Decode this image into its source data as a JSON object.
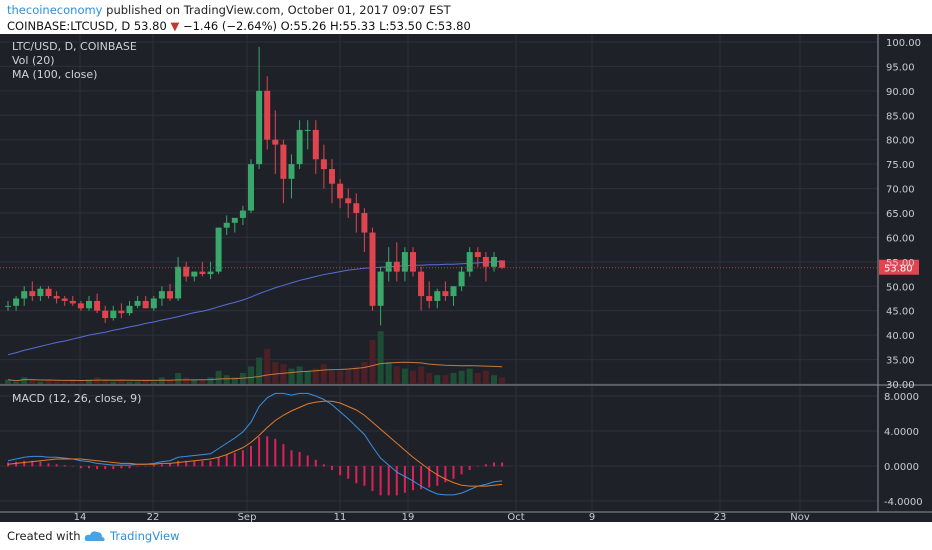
{
  "header": {
    "author": "thecoineconomy",
    "published_text": " published on TradingView.com, October 01, 2017 09:07 EST",
    "symbol_line": "COINBASE:LTCUSD, D  53.80",
    "change": "−1.46 (−2.64%)",
    "ohlc": "O:55.26 H:55.33 L:53.50 C:53.80"
  },
  "legend": {
    "symbol": "LTC/USD, D, COINBASE",
    "vol": "Vol (20)",
    "ma": "MA (100, close)",
    "macd": "MACD (12, 26, close, 9)"
  },
  "price_axis": [
    "100.00",
    "95.00",
    "90.00",
    "85.00",
    "80.00",
    "75.00",
    "70.00",
    "65.00",
    "60.00",
    "55.00",
    "50.00",
    "45.00",
    "40.00",
    "35.00",
    "30.00"
  ],
  "macd_axis": [
    "8.0000",
    "4.0000",
    "0.0000",
    "-4.0000"
  ],
  "current_price": "53.80",
  "time_axis": [
    "14",
    "22",
    "Sep",
    "11",
    "19",
    "Oct",
    "9",
    "23",
    "Nov"
  ],
  "footer": {
    "created": "Created with",
    "brand": "TradingView"
  },
  "colors": {
    "up": "#3aa86a",
    "down": "#e0454f",
    "bg": "#1e2228",
    "ma": "#5a6dd8",
    "macd": "#3b8fe0",
    "signal": "#e07a2c",
    "hist": "#e0205a"
  },
  "chart_data": [
    {
      "type": "candlestick",
      "title": "LTC/USD, D, COINBASE",
      "ylim": [
        30,
        100
      ],
      "candles_ohlc": [
        [
          46,
          47,
          45,
          46
        ],
        [
          46,
          48,
          45,
          47.5
        ],
        [
          47.5,
          50,
          46,
          49
        ],
        [
          49,
          51,
          47,
          48
        ],
        [
          48,
          50,
          47,
          49.5
        ],
        [
          49.5,
          50,
          47.5,
          48
        ],
        [
          48,
          49,
          46.5,
          47.5
        ],
        [
          47.5,
          48,
          46,
          47
        ],
        [
          47,
          48,
          46,
          46.5
        ],
        [
          46.5,
          47,
          45,
          45.5
        ],
        [
          45.5,
          48,
          45,
          47
        ],
        [
          47,
          48.5,
          44.5,
          45
        ],
        [
          45,
          46,
          42.5,
          43.5
        ],
        [
          43.5,
          46,
          43,
          45
        ],
        [
          45,
          46.5,
          43.5,
          44.5
        ],
        [
          44.5,
          47,
          44,
          46
        ],
        [
          46,
          48,
          45.5,
          47
        ],
        [
          47,
          48,
          45.5,
          45.5
        ],
        [
          45.5,
          48,
          45,
          47.5
        ],
        [
          47.5,
          50,
          46,
          49
        ],
        [
          49,
          50.5,
          47,
          47.5
        ],
        [
          47.5,
          56,
          47,
          54
        ],
        [
          54,
          55,
          51,
          52
        ],
        [
          52,
          53,
          51,
          53
        ],
        [
          53,
          55,
          52,
          52.5
        ],
        [
          52.5,
          55,
          51.5,
          53
        ],
        [
          53,
          62,
          52.5,
          62
        ],
        [
          62,
          64.5,
          60.5,
          63
        ],
        [
          63,
          64,
          61,
          64
        ],
        [
          64,
          66.5,
          62.5,
          65.5
        ],
        [
          65.5,
          76,
          65,
          75
        ],
        [
          75,
          99,
          74,
          90
        ],
        [
          90,
          93,
          78,
          80
        ],
        [
          80,
          86,
          73,
          79
        ],
        [
          79,
          80,
          67,
          72
        ],
        [
          72,
          77,
          68,
          75
        ],
        [
          75,
          84,
          74,
          82
        ],
        [
          82,
          84,
          78,
          82
        ],
        [
          82,
          84,
          73,
          76
        ],
        [
          76,
          79,
          70,
          74
        ],
        [
          74,
          76,
          67,
          71
        ],
        [
          71,
          72,
          66,
          68
        ],
        [
          68,
          70,
          64,
          67
        ],
        [
          67,
          69,
          61,
          65
        ],
        [
          65,
          66,
          57,
          61
        ],
        [
          61,
          62,
          45,
          46
        ],
        [
          46,
          54,
          42,
          53
        ],
        [
          53,
          58,
          51,
          55
        ],
        [
          55,
          59,
          51,
          53
        ],
        [
          53,
          58,
          51,
          57
        ],
        [
          57,
          58,
          52,
          53
        ],
        [
          53,
          54,
          45,
          48
        ],
        [
          48,
          51,
          45.5,
          47
        ],
        [
          47,
          49.5,
          45.5,
          49
        ],
        [
          49,
          51,
          47,
          48
        ],
        [
          48,
          50,
          46,
          50
        ],
        [
          50,
          54,
          49,
          53
        ],
        [
          53,
          58,
          52,
          57
        ],
        [
          57,
          58,
          54,
          56
        ],
        [
          56,
          57,
          51,
          54
        ],
        [
          54,
          57,
          53,
          56
        ],
        [
          55.3,
          55.3,
          53.5,
          53.8
        ]
      ],
      "volume": [
        2,
        1,
        3,
        2,
        1,
        2,
        1,
        1,
        2,
        1,
        2,
        3,
        2,
        1,
        2,
        1,
        1,
        2,
        1,
        3,
        2,
        5,
        3,
        2,
        2,
        3,
        6,
        4,
        3,
        5,
        8,
        12,
        16,
        10,
        9,
        7,
        8,
        6,
        7,
        9,
        6,
        6,
        7,
        8,
        10,
        20,
        24,
        10,
        8,
        7,
        6,
        8,
        5,
        4,
        4,
        5,
        6,
        7,
        5,
        6,
        4,
        3
      ],
      "ma100": [
        36,
        36.4,
        36.9,
        37.3,
        37.7,
        38.1,
        38.5,
        38.8,
        39.2,
        39.6,
        40,
        40.3,
        40.6,
        41,
        41.3,
        41.7,
        42,
        42.4,
        42.7,
        43.1,
        43.4,
        43.8,
        44.2,
        44.6,
        44.9,
        45.3,
        45.8,
        46.3,
        46.7,
        47.2,
        47.8,
        48.5,
        49.1,
        49.7,
        50.2,
        50.7,
        51.2,
        51.6,
        52,
        52.4,
        52.7,
        53,
        53.3,
        53.5,
        53.7,
        53.8,
        53.9,
        54,
        54.1,
        54.2,
        54.3,
        54.3,
        54.4,
        54.4,
        54.5,
        54.5,
        54.6,
        54.7,
        54.8,
        54.9,
        55,
        55.1
      ]
    },
    {
      "type": "line",
      "title": "MACD (12, 26, close, 9)",
      "ylim": [
        -4.5,
        9
      ],
      "series": [
        {
          "name": "MACD",
          "values": [
            0.6,
            0.8,
            1,
            1.1,
            1.1,
            1,
            1,
            0.9,
            0.8,
            0.6,
            0.5,
            0.3,
            0.2,
            0.1,
            0.1,
            0.1,
            0.2,
            0.2,
            0.3,
            0.5,
            0.6,
            1,
            1.1,
            1.2,
            1.3,
            1.4,
            2,
            2.6,
            3.2,
            3.9,
            5,
            6.8,
            7.8,
            8.3,
            8.3,
            8.1,
            8.3,
            8.3,
            8,
            7.6,
            7,
            6.2,
            5.4,
            4.5,
            3.6,
            2.2,
            0.9,
            0.1,
            -0.7,
            -1.2,
            -1.7,
            -2.3,
            -2.8,
            -3.2,
            -3.3,
            -3.3,
            -3.1,
            -2.7,
            -2.3,
            -2.1,
            -1.8,
            -1.7
          ]
        },
        {
          "name": "Signal",
          "values": [
            0.2,
            0.3,
            0.4,
            0.5,
            0.6,
            0.7,
            0.8,
            0.8,
            0.8,
            0.8,
            0.7,
            0.6,
            0.5,
            0.4,
            0.3,
            0.3,
            0.2,
            0.2,
            0.2,
            0.3,
            0.3,
            0.4,
            0.5,
            0.6,
            0.7,
            0.8,
            1,
            1.3,
            1.7,
            2.1,
            2.7,
            3.5,
            4.4,
            5.2,
            5.8,
            6.3,
            6.7,
            7.1,
            7.3,
            7.4,
            7.4,
            7.2,
            6.8,
            6.4,
            5.8,
            5,
            4.2,
            3.4,
            2.6,
            1.8,
            1,
            0.3,
            -0.4,
            -1,
            -1.5,
            -1.9,
            -2.2,
            -2.3,
            -2.3,
            -2.3,
            -2.2,
            -2.1
          ]
        },
        {
          "name": "Histogram",
          "values": [
            0.4,
            0.5,
            0.6,
            0.6,
            0.5,
            0.3,
            0.2,
            0.1,
            0,
            -0.2,
            -0.2,
            -0.3,
            -0.3,
            -0.3,
            -0.2,
            -0.2,
            0,
            0,
            0.1,
            0.2,
            0.3,
            0.6,
            0.6,
            0.6,
            0.6,
            0.6,
            1,
            1.3,
            1.5,
            1.8,
            2.3,
            3.3,
            3.4,
            3.1,
            2.5,
            1.8,
            1.6,
            1.2,
            0.7,
            0.2,
            -0.4,
            -1,
            -1.4,
            -1.9,
            -2.2,
            -2.8,
            -3.3,
            -3.3,
            -3.3,
            -3,
            -2.7,
            -2.6,
            -2.4,
            -2.2,
            -1.8,
            -1.4,
            -0.9,
            -0.4,
            0,
            0.2,
            0.4,
            0.4
          ]
        }
      ]
    }
  ]
}
